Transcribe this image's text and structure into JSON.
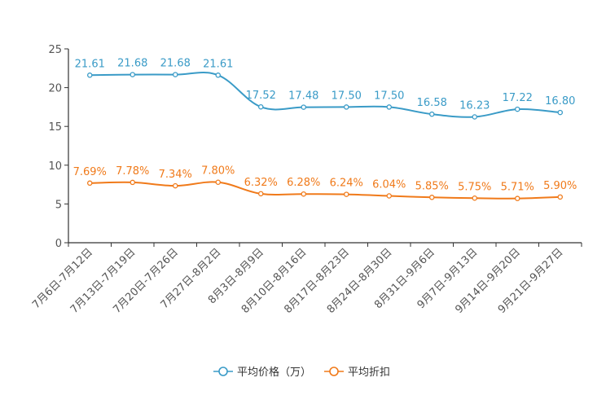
{
  "chart_data": {
    "type": "line",
    "categories": [
      "7月6日-7月12日",
      "7月13日-7月19日",
      "7月20日-7月26日",
      "7月27日-8月2日",
      "8月3日-8月9日",
      "8月10日-8月16日",
      "8月17日-8月23日",
      "8月24日-8月30日",
      "8月31日-9月6日",
      "9月7日-9月13日",
      "9月14日-9月20日",
      "9月21日-9月27日"
    ],
    "ylim": [
      0,
      25
    ],
    "yticks": [
      0,
      5,
      10,
      15,
      20,
      25
    ],
    "legend_position": "bottom-center",
    "series": [
      {
        "name": "平均价格（万）",
        "color": "#3a9bc7",
        "values": [
          21.61,
          21.68,
          21.68,
          21.61,
          17.52,
          17.48,
          17.5,
          17.5,
          16.58,
          16.23,
          17.22,
          16.8
        ],
        "labels": [
          "21.61",
          "21.68",
          "21.68",
          "21.61",
          "17.52",
          "17.48",
          "17.50",
          "17.50",
          "16.58",
          "16.23",
          "17.22",
          "16.80"
        ]
      },
      {
        "name": "平均折扣",
        "color": "#f07a1a",
        "values": [
          7.69,
          7.78,
          7.34,
          7.8,
          6.32,
          6.28,
          6.24,
          6.04,
          5.85,
          5.75,
          5.71,
          5.9
        ],
        "labels": [
          "7.69%",
          "7.78%",
          "7.34%",
          "7.80%",
          "6.32%",
          "6.28%",
          "6.24%",
          "6.04%",
          "5.85%",
          "5.75%",
          "5.71%",
          "5.90%"
        ]
      }
    ]
  }
}
